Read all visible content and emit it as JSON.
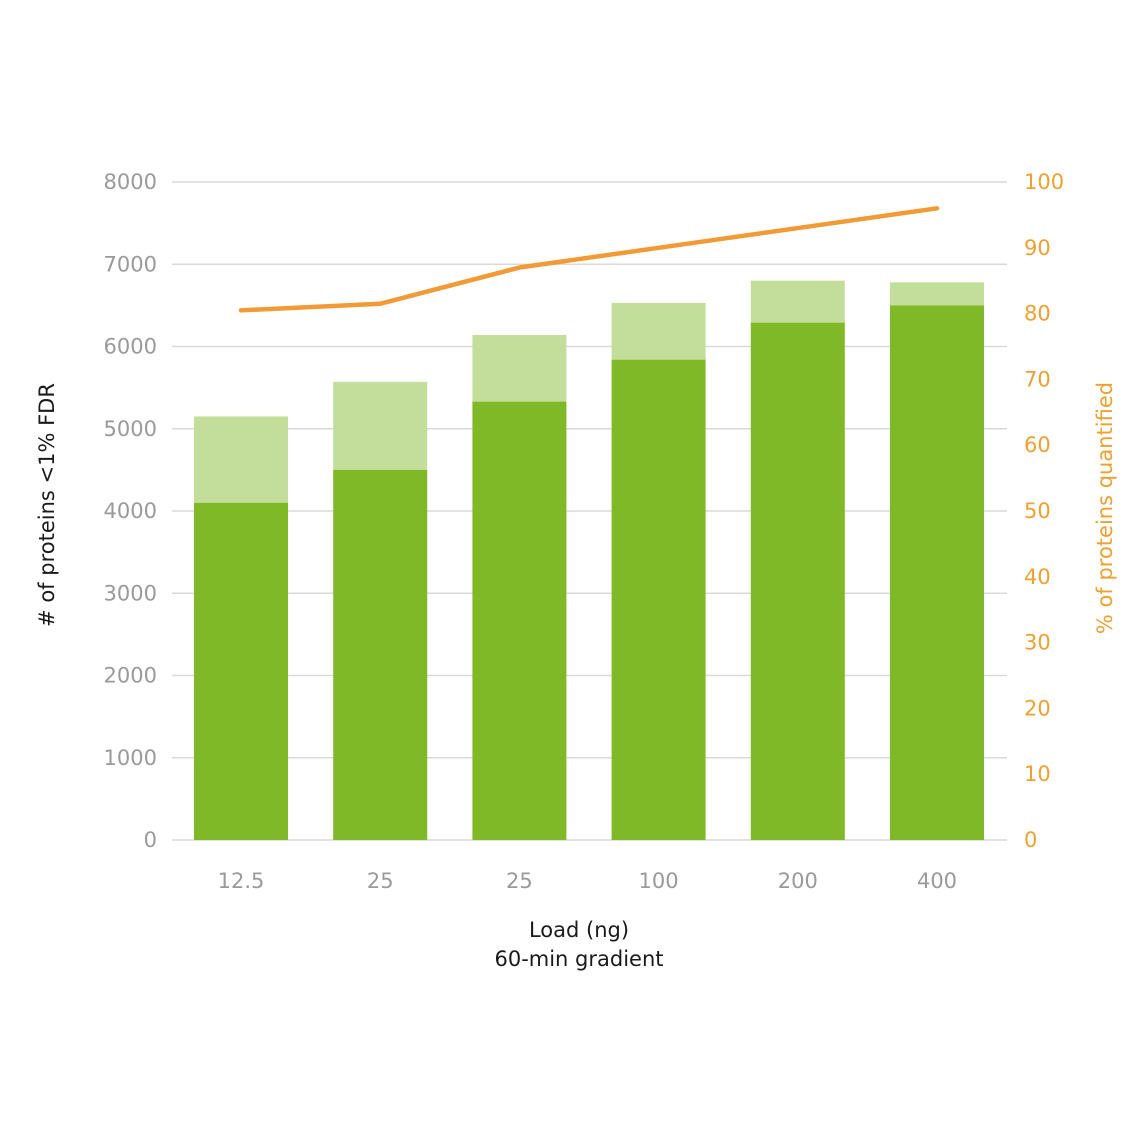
{
  "chart_data": {
    "type": "bar",
    "categories": [
      "12.5",
      "25",
      "25",
      "100",
      "200",
      "400"
    ],
    "series": [
      {
        "kind": "stacked-bar-base",
        "values": [
          4100,
          4500,
          5330,
          5840,
          6290,
          6500
        ],
        "color": "#80b927"
      },
      {
        "kind": "stacked-bar-top",
        "values": [
          1050,
          1070,
          810,
          690,
          510,
          280
        ],
        "color": "#c3de9a"
      },
      {
        "kind": "line",
        "axis": "right",
        "values": [
          80.5,
          81.5,
          87,
          90,
          93,
          96
        ],
        "color": "#f29a35"
      }
    ],
    "xlabel": [
      "Load (ng)",
      "60-min gradient"
    ],
    "ylabel": "# of proteins <1% FDR",
    "ylabel_right": "% of proteins quantified",
    "ylim": [
      0,
      8000
    ],
    "ylim_right": [
      0,
      100
    ],
    "yticks": [
      0,
      1000,
      2000,
      3000,
      4000,
      5000,
      6000,
      7000,
      8000
    ],
    "yticks_right": [
      0,
      10,
      20,
      30,
      40,
      50,
      60,
      70,
      80,
      90,
      100
    ],
    "grid": true,
    "colors": {
      "grid": "#d9d9d9",
      "left_axis_text": "#9a9a9a",
      "right_axis_text": "#f0a030",
      "title_text": "#1a1a1a"
    }
  }
}
